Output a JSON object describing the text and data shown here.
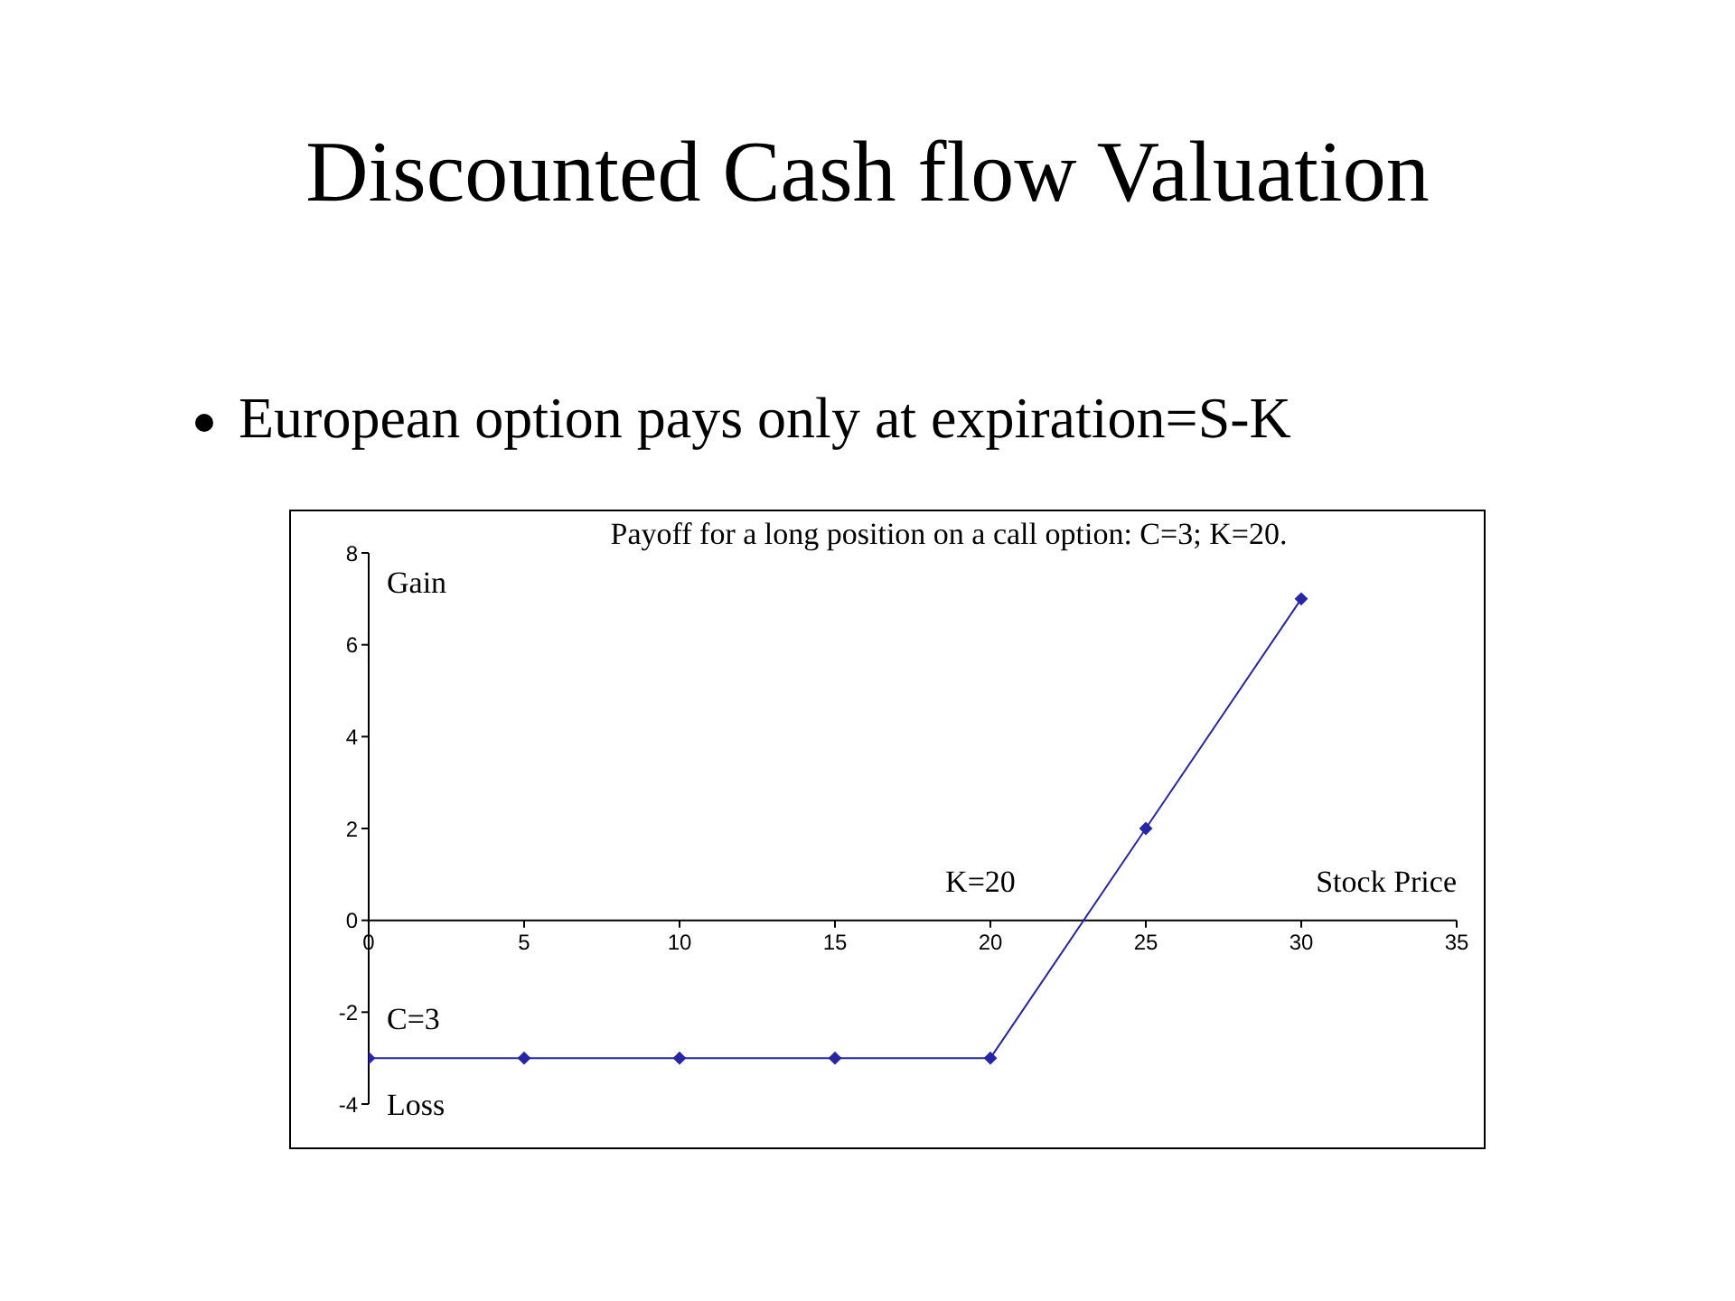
{
  "chart_data": {
    "type": "line",
    "title": "Discounted Cash flow Valuation",
    "subtitle": "European option pays only at expiration=S-K",
    "xlabel": "Stock Price",
    "x": [
      0,
      5,
      10,
      15,
      20,
      25,
      30
    ],
    "series": [
      {
        "color": "#2626a6",
        "values": [
          -3,
          -3,
          -3,
          -3,
          -3,
          2,
          7
        ]
      }
    ],
    "xlim": [
      0,
      35
    ],
    "xticks": [
      0,
      5,
      10,
      15,
      20,
      25,
      30,
      35
    ],
    "ylim": [
      -4,
      8
    ],
    "yticks": [
      -4,
      -2,
      0,
      2,
      4,
      6,
      8
    ],
    "marker": "diamond",
    "line_style": "solid",
    "grid": false,
    "legend": false,
    "annotations": [
      "Payoff for a long position on a call option: C=3; K=20.",
      "Gain",
      "C=3",
      "Loss",
      "K=20"
    ]
  }
}
